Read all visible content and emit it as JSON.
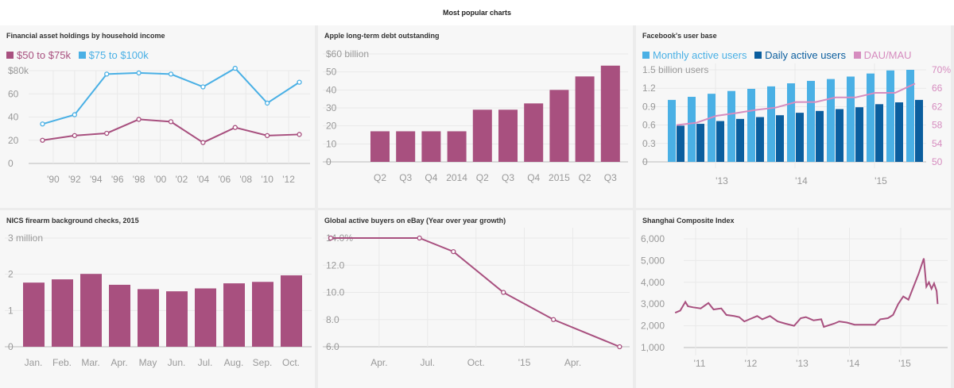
{
  "header": {
    "title": "Most popular charts"
  },
  "colors": {
    "purple": "#a8507f",
    "lightblue": "#4ab0e5",
    "darkblue": "#0b5e9e",
    "pink": "#d68cbf",
    "axis": "#999999",
    "grid": "#e9e9e9"
  },
  "chart_data": [
    {
      "type": "line",
      "title": "Financial asset holdings by household income",
      "x": [
        1989,
        1992,
        1995,
        1998,
        2001,
        2004,
        2007,
        2010,
        2013
      ],
      "series": [
        {
          "name": "$50 to $75k",
          "color": "#a8507f",
          "values": [
            20,
            24,
            26,
            38,
            36,
            18,
            31,
            24,
            25
          ]
        },
        {
          "name": "$75 to $100k",
          "color": "#4ab0e5",
          "values": [
            34,
            42,
            77,
            78,
            77,
            66,
            82,
            52,
            70
          ]
        }
      ],
      "xticks": [
        1990,
        1992,
        1994,
        1996,
        1998,
        2000,
        2002,
        2004,
        2006,
        2008,
        2010,
        2012
      ],
      "xtick_labels": [
        "'90",
        "'92",
        "'94",
        "'96",
        "'98",
        "'00",
        "'02",
        "'04",
        "'06",
        "'08",
        "'10",
        "'12"
      ],
      "ylim": [
        0,
        80
      ],
      "yticks": [
        0,
        20,
        40,
        60,
        80
      ],
      "ytick_labels": [
        "0",
        "20",
        "40",
        "60",
        "$80k"
      ],
      "legend": "top-left"
    },
    {
      "type": "bar",
      "title": "Apple long-term debt outstanding",
      "categories": [
        "Q2",
        "Q3",
        "Q4",
        "2014",
        "Q2",
        "Q3",
        "Q4",
        "2015",
        "Q2",
        "Q3"
      ],
      "values": [
        17,
        17,
        17,
        17,
        29,
        29,
        32.5,
        40,
        47.5,
        53.5
      ],
      "ylim": [
        0,
        60
      ],
      "yticks": [
        0,
        10,
        20,
        30,
        40,
        50,
        60
      ],
      "ytick_labels": [
        "0",
        "10",
        "20",
        "30",
        "40",
        "50",
        "$60 billion"
      ],
      "ylabel": "billion"
    },
    {
      "type": "bar",
      "title": "Facebook's user base",
      "x_groups": 13,
      "series": [
        {
          "name": "Monthly active users",
          "color": "#4ab0e5",
          "values": [
            1.01,
            1.06,
            1.11,
            1.155,
            1.19,
            1.23,
            1.28,
            1.32,
            1.35,
            1.39,
            1.44,
            1.49,
            1.5
          ]
        },
        {
          "name": "Daily active users",
          "color": "#0b5e9e",
          "values": [
            0.59,
            0.62,
            0.665,
            0.7,
            0.73,
            0.76,
            0.8,
            0.83,
            0.86,
            0.89,
            0.94,
            0.97,
            1.01
          ]
        },
        {
          "name": "DAU/MAU",
          "color": "#d68cbf",
          "type": "line",
          "axis": "right",
          "values": [
            58,
            58.5,
            60,
            60.6,
            61.3,
            61.8,
            63,
            63,
            64,
            64,
            65,
            65,
            67
          ]
        }
      ],
      "xtick_labels": [
        "'13",
        "'14",
        "'15"
      ],
      "ylim": [
        0,
        1.5
      ],
      "yticks": [
        0,
        0.3,
        0.6,
        0.9,
        1.2,
        1.5
      ],
      "ytick_labels": [
        "0",
        "0.3",
        "0.6",
        "0.9",
        "1.2",
        "1.5 billion users"
      ],
      "y2lim": [
        50,
        70
      ],
      "y2ticks": [
        50,
        54,
        58,
        62,
        66,
        70
      ],
      "y2tick_labels": [
        "50",
        "54",
        "58",
        "62",
        "66",
        "70%"
      ],
      "legend": "top-left"
    },
    {
      "type": "bar",
      "title": "NICS firearm background checks, 2015",
      "categories": [
        "Jan.",
        "Feb.",
        "Mar.",
        "Apr.",
        "May",
        "Jun.",
        "Jul.",
        "Aug.",
        "Sep.",
        "Oct."
      ],
      "values": [
        1.77,
        1.86,
        2.01,
        1.71,
        1.59,
        1.53,
        1.61,
        1.75,
        1.79,
        1.97
      ],
      "ylim": [
        0,
        3
      ],
      "yticks": [
        0,
        1,
        2,
        3
      ],
      "ytick_labels": [
        "0",
        "1",
        "2",
        "3 million"
      ]
    },
    {
      "type": "line",
      "title": "Global active buyers on eBay (Year over year growth)",
      "x_unit": "months since Jan 2014",
      "x": [
        0,
        5.5,
        7.6,
        10.7,
        13.8,
        17.9
      ],
      "values": [
        14,
        14,
        13,
        10,
        8,
        6
      ],
      "ylim": [
        6,
        14
      ],
      "yticks": [
        6,
        8,
        10,
        12,
        14
      ],
      "ytick_labels": [
        "6.0",
        "8.0",
        "10.0",
        "12.0",
        "14.0%"
      ],
      "xticks": [
        3,
        6,
        9,
        12,
        15
      ],
      "xtick_labels": [
        "Apr.",
        "Jul.",
        "Oct.",
        "'15",
        "Apr."
      ]
    },
    {
      "type": "line",
      "title": "Shanghai Composite Index",
      "x": [
        2010.6,
        2010.7,
        2010.8,
        2010.85,
        2010.95,
        2011.1,
        2011.25,
        2011.35,
        2011.5,
        2011.6,
        2011.75,
        2011.85,
        2011.95,
        2012.05,
        2012.2,
        2012.3,
        2012.45,
        2012.6,
        2012.75,
        2012.92,
        2013.05,
        2013.15,
        2013.3,
        2013.45,
        2013.5,
        2013.7,
        2013.8,
        2013.95,
        2014.1,
        2014.3,
        2014.5,
        2014.6,
        2014.75,
        2014.85,
        2014.95,
        2015.05,
        2015.15,
        2015.25,
        2015.35,
        2015.45,
        2015.5,
        2015.55,
        2015.6,
        2015.65,
        2015.7,
        2015.72
      ],
      "values": [
        2600,
        2700,
        3100,
        2900,
        2850,
        2800,
        3050,
        2750,
        2800,
        2500,
        2450,
        2400,
        2200,
        2300,
        2450,
        2300,
        2450,
        2200,
        2100,
        2000,
        2350,
        2400,
        2250,
        2300,
        1950,
        2100,
        2200,
        2150,
        2050,
        2050,
        2050,
        2300,
        2350,
        2500,
        3000,
        3350,
        3200,
        3800,
        4400,
        5100,
        3800,
        4000,
        3700,
        3950,
        3600,
        3000
      ],
      "ylim": [
        1000,
        6000
      ],
      "yticks": [
        1000,
        2000,
        3000,
        4000,
        5000,
        6000
      ],
      "ytick_labels": [
        "1,000",
        "2,000",
        "3,000",
        "4,000",
        "5,000",
        "6,000"
      ],
      "xticks": [
        2011,
        2012,
        2013,
        2014,
        2015
      ],
      "xtick_labels": [
        "'11",
        "'12",
        "'13",
        "'14",
        "'15"
      ]
    }
  ]
}
